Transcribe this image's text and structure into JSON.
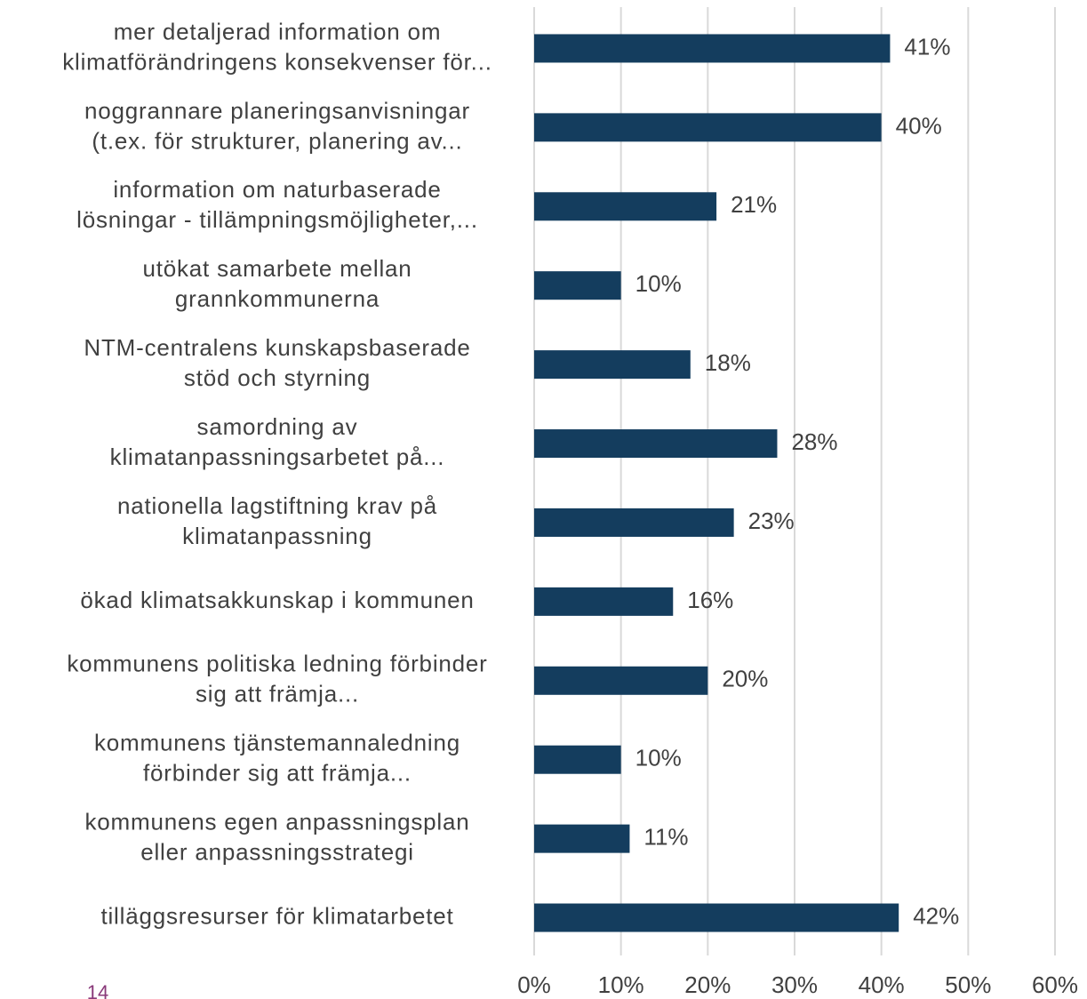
{
  "chart_data": {
    "type": "bar",
    "orientation": "horizontal",
    "categories": [
      [
        "mer detaljerad information om",
        "klimatförändringens konsekvenser för..."
      ],
      [
        "noggrannare planeringsanvisningar",
        "(t.ex. för strukturer, planering av..."
      ],
      [
        "information om naturbaserade",
        "lösningar - tillämpningsmöjligheter,..."
      ],
      [
        "utökat samarbete mellan",
        "grannkommunerna"
      ],
      [
        "NTM-centralens kunskapsbaserade",
        "stöd och styrning"
      ],
      [
        "samordning av",
        "klimatanpassningsarbetet på..."
      ],
      [
        "nationella lagstiftning krav på",
        "klimatanpassning"
      ],
      [
        "ökad klimatsakkunskap i kommunen"
      ],
      [
        "kommunens politiska ledning förbinder",
        "sig att främja..."
      ],
      [
        "kommunens tjänstemannaledning",
        "förbinder sig att främja..."
      ],
      [
        "kommunens egen anpassningsplan",
        "eller anpassningsstrategi"
      ],
      [
        "tilläggsresurser för klimatarbetet"
      ]
    ],
    "values": [
      41,
      40,
      21,
      10,
      18,
      28,
      23,
      16,
      20,
      10,
      11,
      42
    ],
    "value_labels": [
      "41%",
      "40%",
      "21%",
      "10%",
      "18%",
      "28%",
      "23%",
      "16%",
      "20%",
      "10%",
      "11%",
      "42%"
    ],
    "color": "#143d5e",
    "xlim": [
      0,
      60
    ],
    "xticks": [
      {
        "value": 0,
        "label": "0%"
      },
      {
        "value": 10,
        "label": "10%"
      },
      {
        "value": 20,
        "label": "20%"
      },
      {
        "value": 30,
        "label": "30%"
      },
      {
        "value": 40,
        "label": "40%"
      },
      {
        "value": 50,
        "label": "50%"
      },
      {
        "value": 60,
        "label": "60%"
      }
    ],
    "grid": true,
    "page_number": "14"
  }
}
